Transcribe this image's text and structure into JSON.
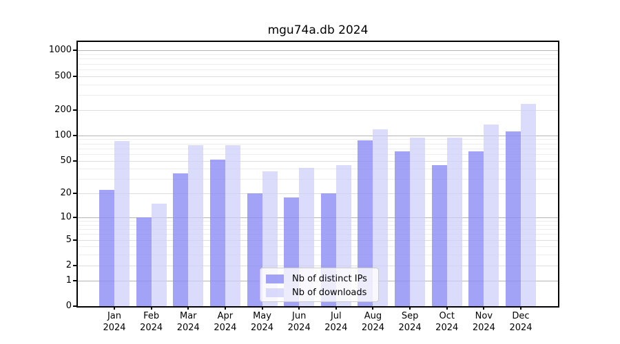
{
  "chart_data": {
    "type": "bar",
    "title": "mgu74a.db 2024",
    "categories": [
      "Jan",
      "Feb",
      "Mar",
      "Apr",
      "May",
      "Jun",
      "Jul",
      "Aug",
      "Sep",
      "Oct",
      "Nov",
      "Dec"
    ],
    "year": "2024",
    "series": [
      {
        "name": "Nb of distinct IPs",
        "color": "rgba(139,139,244,0.8)",
        "values": [
          22,
          10,
          35,
          51,
          20,
          18,
          20,
          87,
          65,
          44,
          64,
          112
        ]
      },
      {
        "name": "Nb of downloads",
        "color": "rgba(206,206,250,0.73)",
        "values": [
          85,
          15,
          77,
          76,
          37,
          41,
          44,
          118,
          95,
          95,
          135,
          235
        ]
      }
    ],
    "yscale": "log1p",
    "yticks": [
      0,
      1,
      2,
      5,
      10,
      20,
      50,
      100,
      200,
      500,
      1000
    ],
    "ytick_decades": [
      1,
      10,
      100,
      1000
    ],
    "yminor_ticks": [
      3,
      4,
      6,
      7,
      8,
      9,
      30,
      40,
      60,
      70,
      80,
      90,
      300,
      400,
      600,
      700,
      800,
      900
    ],
    "ylim": [
      0,
      1260
    ],
    "grid": true,
    "legend_position": "bottom-center-inside",
    "axis_color": "#000000",
    "grid_major_color": "#b4b4b4",
    "grid_minor_color": "#ededed"
  }
}
